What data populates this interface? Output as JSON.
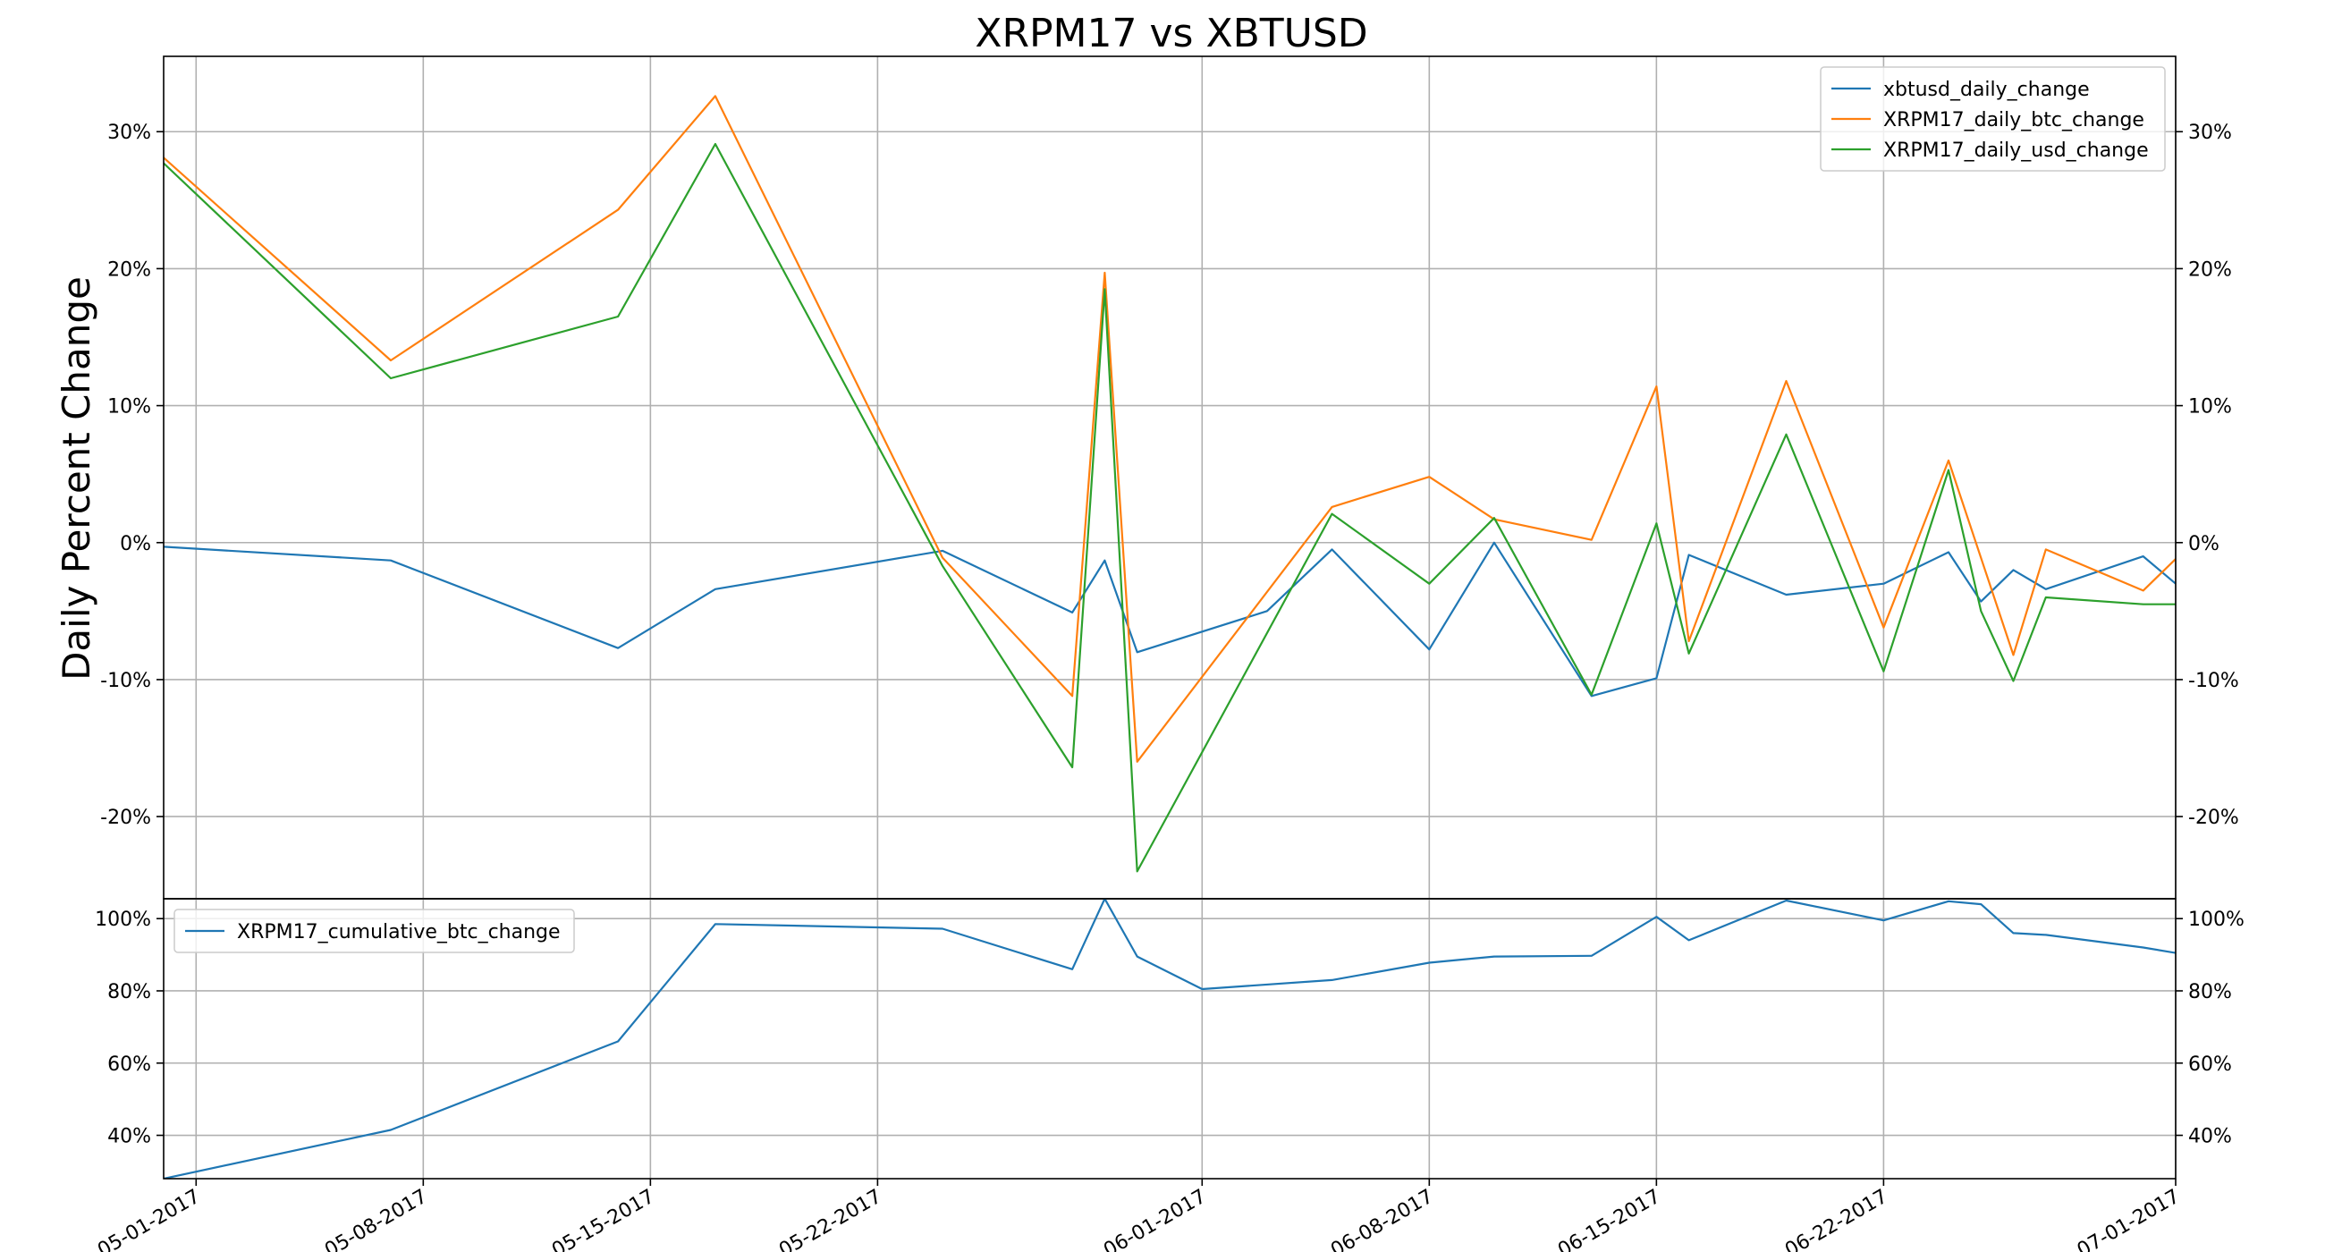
{
  "figure_title": "XRPM17 vs XBTUSD",
  "chart_data": [
    {
      "type": "line",
      "panel": "top",
      "ylabel": "Daily Percent Change",
      "ylim": [
        -0.26,
        0.355
      ],
      "yticks": [
        -0.2,
        -0.1,
        0.0,
        0.1,
        0.2,
        0.3
      ],
      "ytick_labels": [
        "-20%",
        "-10%",
        "0%",
        "10%",
        "20%",
        "30%"
      ],
      "secondary_yaxis": true,
      "grid": true,
      "legend_position": "top-right",
      "series": [
        {
          "name": "xbtusd_daily_change",
          "color": "#1f77b4",
          "x": [
            "04-30-2017",
            "05-07-2017",
            "05-14-2017",
            "05-17-2017",
            "05-24-2017",
            "05-28-2017",
            "05-29-2017",
            "05-30-2017",
            "06-03-2017",
            "06-05-2017",
            "06-08-2017",
            "06-10-2017",
            "06-13-2017",
            "06-15-2017",
            "06-16-2017",
            "06-19-2017",
            "06-22-2017",
            "06-24-2017",
            "06-25-2017",
            "06-26-2017",
            "06-27-2017",
            "06-30-2017",
            "07-01-2017"
          ],
          "y": [
            -0.003,
            -0.013,
            -0.077,
            -0.034,
            -0.006,
            -0.051,
            -0.013,
            -0.08,
            -0.05,
            -0.005,
            -0.078,
            0.0,
            -0.112,
            -0.099,
            -0.009,
            -0.038,
            -0.03,
            -0.007,
            -0.043,
            -0.02,
            -0.034,
            -0.01,
            -0.03
          ]
        },
        {
          "name": "XRPM17_daily_btc_change",
          "color": "#ff7f0e",
          "x": [
            "04-30-2017",
            "05-07-2017",
            "05-14-2017",
            "05-17-2017",
            "05-24-2017",
            "05-28-2017",
            "05-29-2017",
            "05-30-2017",
            "06-05-2017",
            "06-08-2017",
            "06-10-2017",
            "06-13-2017",
            "06-15-2017",
            "06-16-2017",
            "06-19-2017",
            "06-22-2017",
            "06-24-2017",
            "06-26-2017",
            "06-27-2017",
            "06-30-2017",
            "07-01-2017"
          ],
          "y": [
            0.281,
            0.133,
            0.243,
            0.326,
            -0.011,
            -0.112,
            0.197,
            -0.16,
            0.026,
            0.048,
            0.017,
            0.002,
            0.114,
            -0.072,
            0.118,
            -0.062,
            0.06,
            -0.082,
            -0.005,
            -0.035,
            -0.012
          ]
        },
        {
          "name": "XRPM17_daily_usd_change",
          "color": "#2ca02c",
          "x": [
            "04-30-2017",
            "05-07-2017",
            "05-14-2017",
            "05-17-2017",
            "05-24-2017",
            "05-28-2017",
            "05-29-2017",
            "05-30-2017",
            "06-05-2017",
            "06-08-2017",
            "06-10-2017",
            "06-13-2017",
            "06-15-2017",
            "06-16-2017",
            "06-19-2017",
            "06-22-2017",
            "06-24-2017",
            "06-25-2017",
            "06-26-2017",
            "06-27-2017",
            "06-30-2017",
            "07-01-2017"
          ],
          "y": [
            0.277,
            0.12,
            0.165,
            0.291,
            -0.017,
            -0.164,
            0.185,
            -0.24,
            0.021,
            -0.03,
            0.018,
            -0.111,
            0.014,
            -0.081,
            0.079,
            -0.094,
            0.053,
            -0.05,
            -0.101,
            -0.04,
            -0.045,
            -0.045
          ]
        }
      ]
    },
    {
      "type": "line",
      "panel": "bottom",
      "ylim": [
        0.28,
        1.055
      ],
      "yticks": [
        0.4,
        0.6,
        0.8,
        1.0
      ],
      "ytick_labels": [
        "40%",
        "60%",
        "80%",
        "100%"
      ],
      "secondary_yaxis": true,
      "grid": true,
      "legend_position": "top-left",
      "series": [
        {
          "name": "XRPM17_cumulative_btc_change",
          "color": "#1f77b4",
          "x": [
            "04-30-2017",
            "05-07-2017",
            "05-14-2017",
            "05-17-2017",
            "05-24-2017",
            "05-28-2017",
            "05-29-2017",
            "05-30-2017",
            "06-01-2017",
            "06-05-2017",
            "06-08-2017",
            "06-10-2017",
            "06-13-2017",
            "06-15-2017",
            "06-16-2017",
            "06-19-2017",
            "06-22-2017",
            "06-24-2017",
            "06-25-2017",
            "06-26-2017",
            "06-27-2017",
            "06-30-2017",
            "07-01-2017"
          ],
          "y": [
            0.28,
            0.415,
            0.66,
            0.985,
            0.972,
            0.86,
            1.055,
            0.895,
            0.805,
            0.83,
            0.878,
            0.895,
            0.897,
            1.005,
            0.94,
            1.05,
            0.995,
            1.048,
            1.04,
            0.96,
            0.955,
            0.92,
            0.905
          ]
        }
      ]
    }
  ],
  "x_axis": {
    "min": "04-30-2017",
    "max": "07-01-2017",
    "ticks": [
      "05-01-2017",
      "05-08-2017",
      "05-15-2017",
      "05-22-2017",
      "06-01-2017",
      "06-08-2017",
      "06-15-2017",
      "06-22-2017",
      "07-01-2017"
    ]
  }
}
